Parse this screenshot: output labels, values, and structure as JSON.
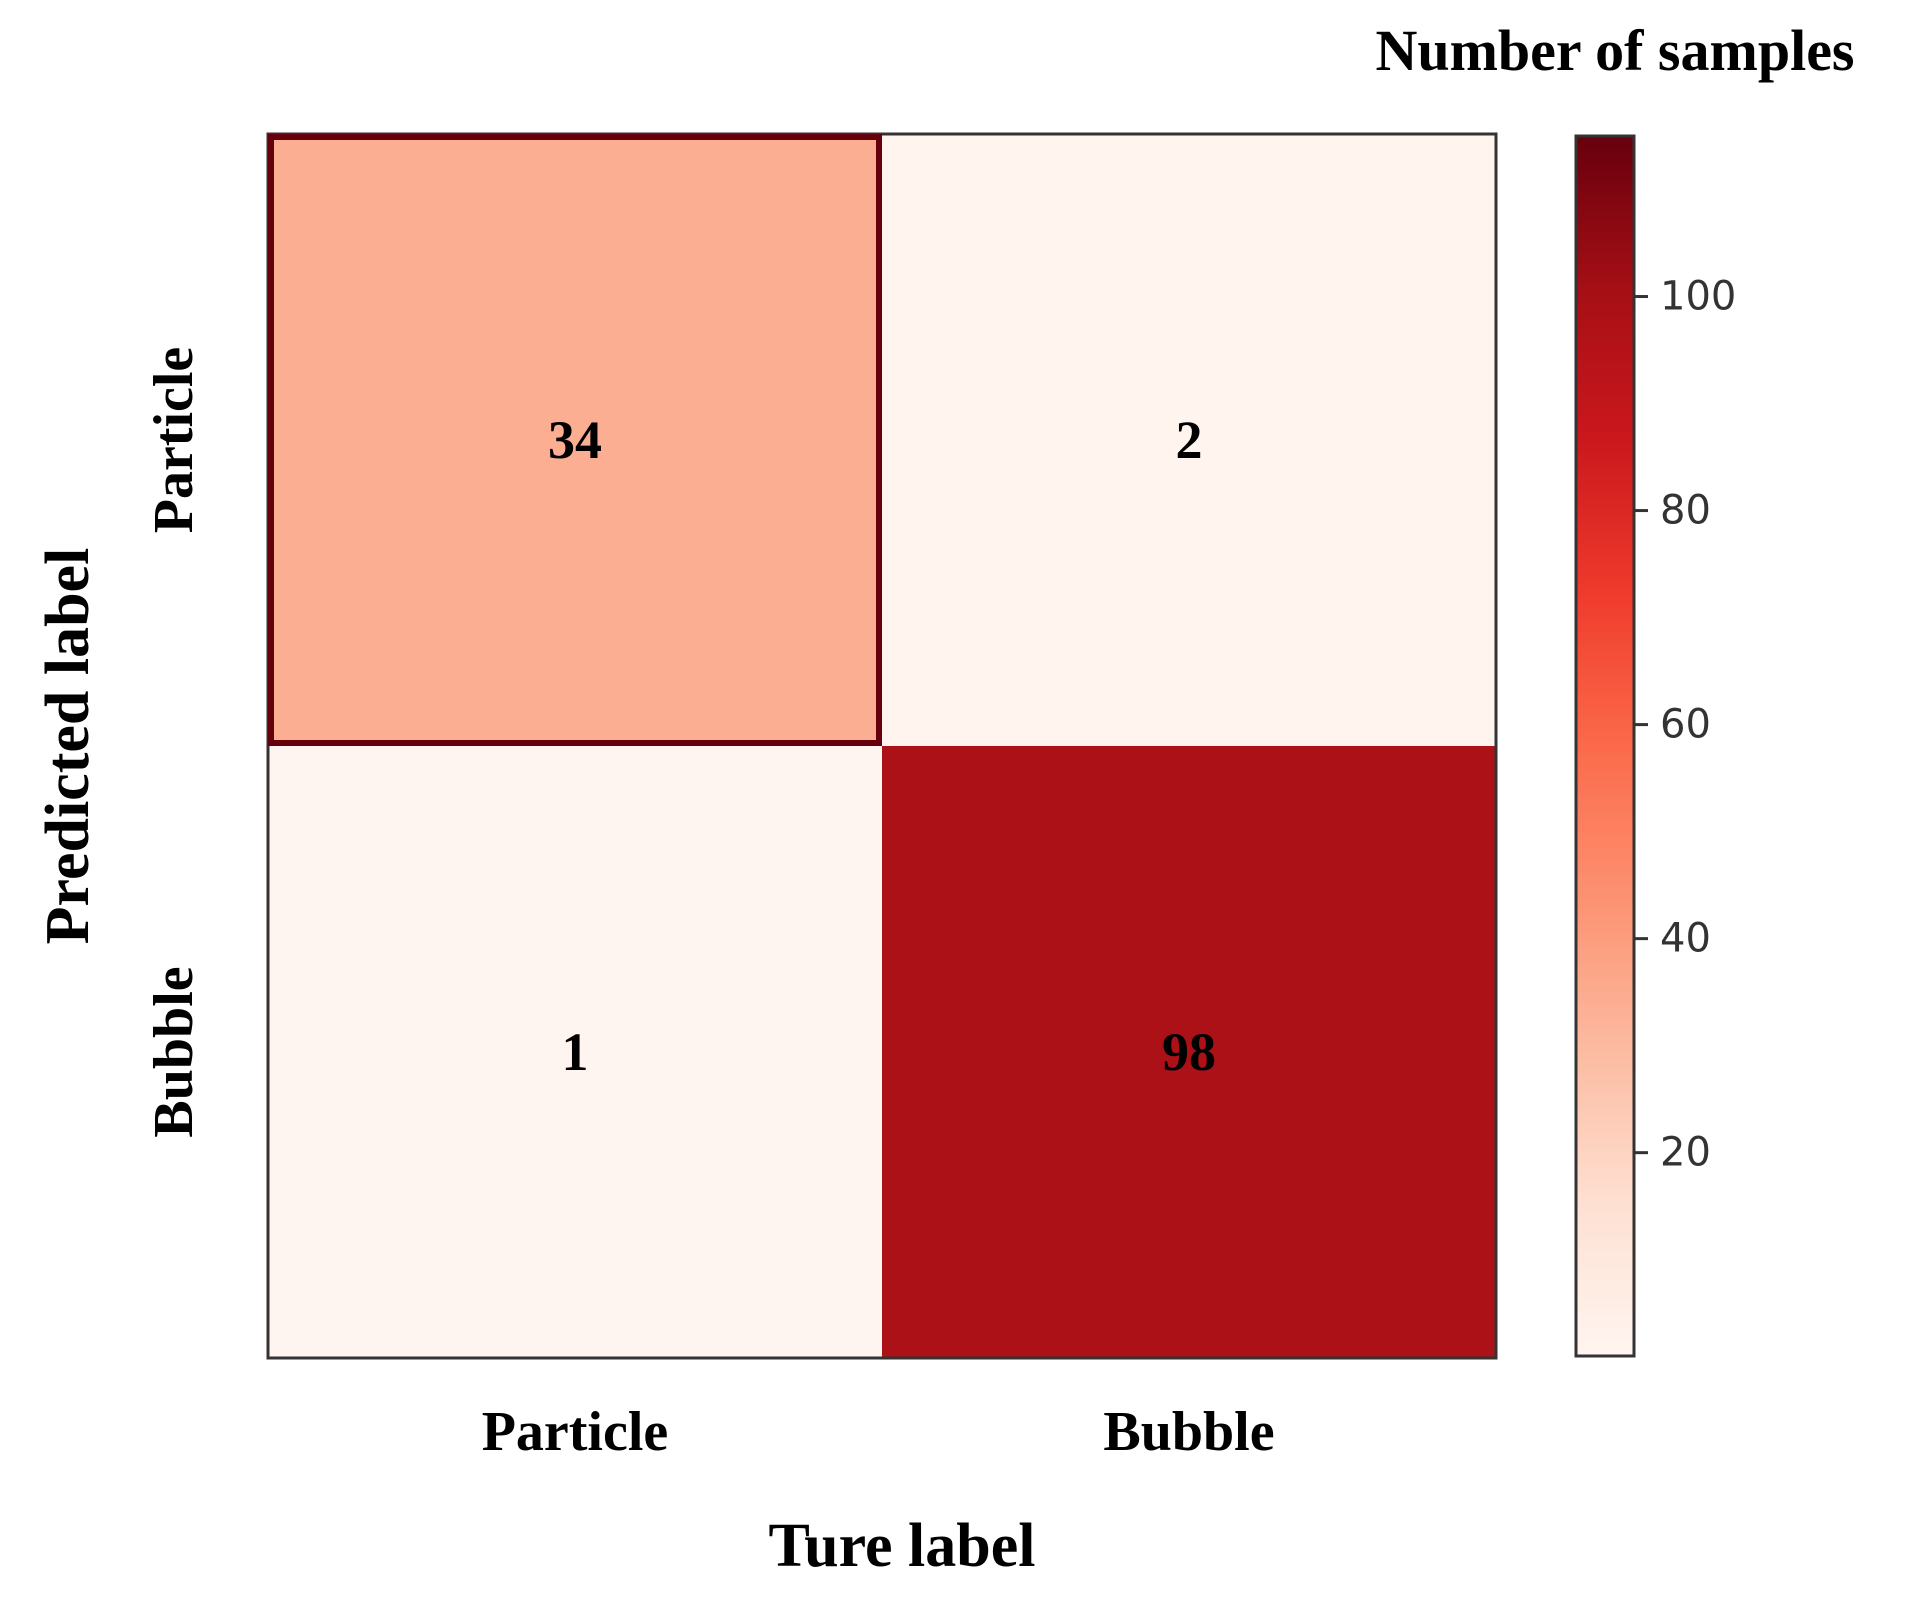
{
  "chart_data": {
    "type": "heatmap",
    "title": "",
    "xlabel": "Ture label",
    "ylabel": "Predicted label",
    "x_categories": [
      "Particle",
      "Bubble"
    ],
    "y_categories": [
      "Particle",
      "Bubble"
    ],
    "values": [
      [
        34,
        2
      ],
      [
        1,
        98
      ]
    ],
    "colorbar": {
      "label": "Number of samples",
      "range": [
        1,
        115
      ],
      "ticks": [
        20,
        40,
        60,
        80,
        100
      ],
      "colormap": "Reds",
      "colormap_stops": [
        "#fff5f0",
        "#fee0d2",
        "#fcbba1",
        "#fc9272",
        "#fb6a4a",
        "#ef3b2c",
        "#cb181d",
        "#a50f15",
        "#67000d"
      ]
    },
    "highlighted_cell": [
      0,
      0
    ],
    "highlight_color": "#67000d",
    "grid": false
  }
}
